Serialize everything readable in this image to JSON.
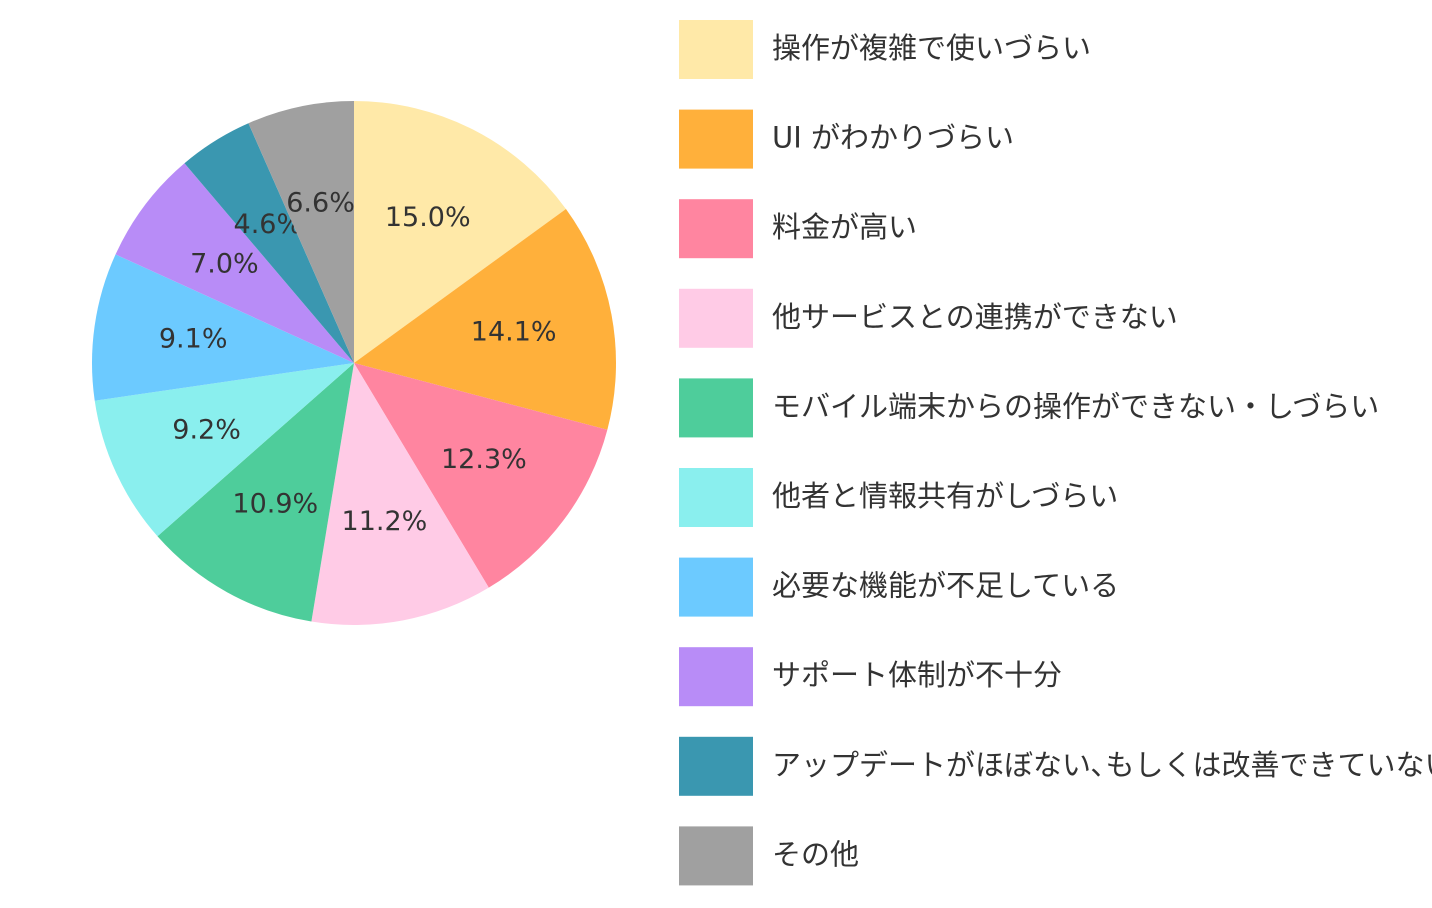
{
  "chart_data": {
    "type": "pie",
    "categories": [
      "操作が複雑で使いづらい",
      "UI がわかりづらい",
      "料金が高い",
      "他サービスとの連携ができない",
      "モバイル端末からの操作ができない・しづらい",
      "他者と情報共有がしづらい",
      "必要な機能が不足している",
      "サポート体制が不十分",
      "アップデートがほぼない､もしくは改善できていない",
      "その他"
    ],
    "values": [
      15.0,
      14.1,
      12.3,
      11.2,
      10.9,
      9.2,
      9.1,
      7.0,
      4.6,
      6.6
    ],
    "value_labels": [
      "15.0%",
      "14.1%",
      "12.3%",
      "11.2%",
      "10.9%",
      "9.2%",
      "9.1%",
      "7.0%",
      "4.6%",
      "6.6%"
    ],
    "colors": [
      "#ffe9a8",
      "#ffb03b",
      "#ff85a0",
      "#ffcbe6",
      "#4ecd9b",
      "#8aefee",
      "#6ccaff",
      "#b88cf7",
      "#3a97b0",
      "#a0a0a0"
    ]
  }
}
